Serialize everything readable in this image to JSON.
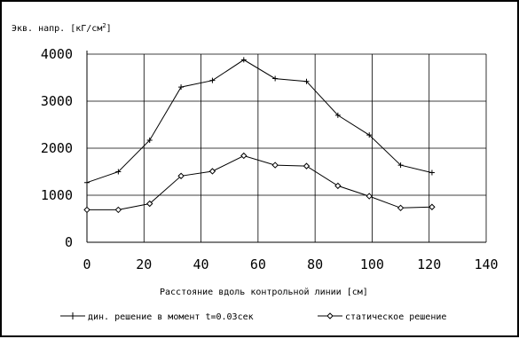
{
  "chart_data": {
    "type": "line",
    "ylabel_main": "Экв. напр. [кГ/см",
    "ylabel_sup": "2",
    "ylabel_end": "]",
    "xlabel": "Расстояние вдоль контрольной линии [см]",
    "xlim": [
      0,
      140
    ],
    "ylim": [
      0,
      4000
    ],
    "xticks": [
      0,
      20,
      40,
      60,
      80,
      100,
      120,
      140
    ],
    "yticks": [
      0,
      1000,
      2000,
      3000,
      4000
    ],
    "grid": true,
    "legend_position": "bottom",
    "series": [
      {
        "name": "дин. решение в момент t=0.03сек",
        "marker": "plus",
        "color": "#000000",
        "x": [
          0,
          11,
          22,
          33,
          44,
          55,
          66,
          77,
          88,
          99,
          110,
          121
        ],
        "y": [
          1270,
          1500,
          2170,
          3300,
          3440,
          3880,
          3480,
          3420,
          2700,
          2280,
          1640,
          1480
        ]
      },
      {
        "name": "статическое решение",
        "marker": "diamond",
        "color": "#000000",
        "x": [
          0,
          11,
          22,
          33,
          44,
          55,
          66,
          77,
          88,
          99,
          110,
          121
        ],
        "y": [
          690,
          690,
          820,
          1410,
          1510,
          1840,
          1640,
          1620,
          1200,
          980,
          730,
          750
        ]
      }
    ]
  }
}
